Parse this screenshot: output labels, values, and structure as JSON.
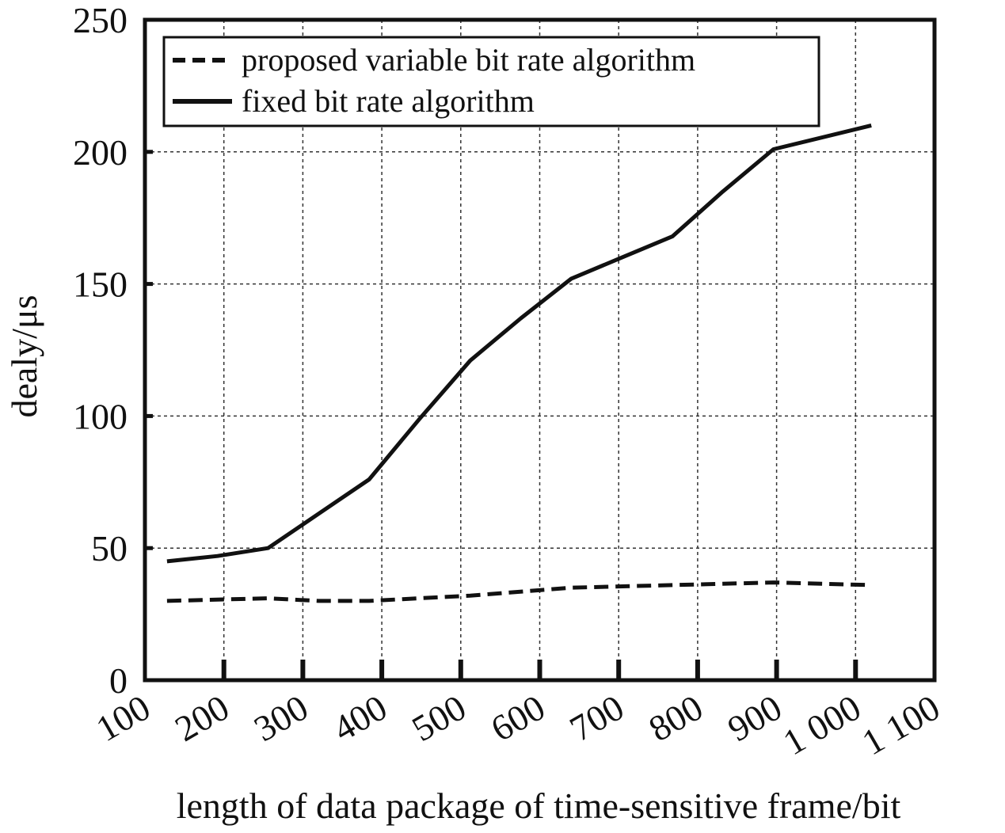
{
  "chart_data": {
    "type": "line",
    "title": "",
    "xlabel": "length of data package of time-sensitive frame/bit",
    "ylabel": "dealy/μs",
    "xlim": [
      100,
      1100
    ],
    "ylim": [
      0,
      250
    ],
    "x_ticks": [
      {
        "value": 100,
        "label": "100"
      },
      {
        "value": 200,
        "label": "200"
      },
      {
        "value": 300,
        "label": "300"
      },
      {
        "value": 400,
        "label": "400"
      },
      {
        "value": 500,
        "label": "500"
      },
      {
        "value": 600,
        "label": "600"
      },
      {
        "value": 700,
        "label": "700"
      },
      {
        "value": 800,
        "label": "800"
      },
      {
        "value": 900,
        "label": "900"
      },
      {
        "value": 1000,
        "label": "1 000"
      },
      {
        "value": 1100,
        "label": "1 100"
      }
    ],
    "y_ticks": [
      {
        "value": 0,
        "label": "0"
      },
      {
        "value": 50,
        "label": "50"
      },
      {
        "value": 100,
        "label": "100"
      },
      {
        "value": 150,
        "label": "150"
      },
      {
        "value": 200,
        "label": "200"
      },
      {
        "value": 250,
        "label": "250"
      }
    ],
    "grid": true,
    "legend_position": "top-left",
    "series": [
      {
        "name": "proposed variable bit rate algorithm",
        "line_style": "dashed",
        "color": "#111111",
        "x": [
          128,
          256,
          320,
          384,
          512,
          640,
          768,
          896,
          1020
        ],
        "y": [
          30,
          31,
          30,
          30,
          32,
          35,
          36,
          37,
          36
        ]
      },
      {
        "name": "fixed bit rate algorithm",
        "line_style": "solid",
        "color": "#111111",
        "x": [
          128,
          192,
          256,
          320,
          384,
          448,
          512,
          576,
          640,
          704,
          768,
          832,
          896,
          1020
        ],
        "y": [
          45,
          47,
          50,
          63,
          76,
          99,
          121,
          137,
          152,
          160,
          168,
          185,
          201,
          210
        ]
      }
    ]
  }
}
